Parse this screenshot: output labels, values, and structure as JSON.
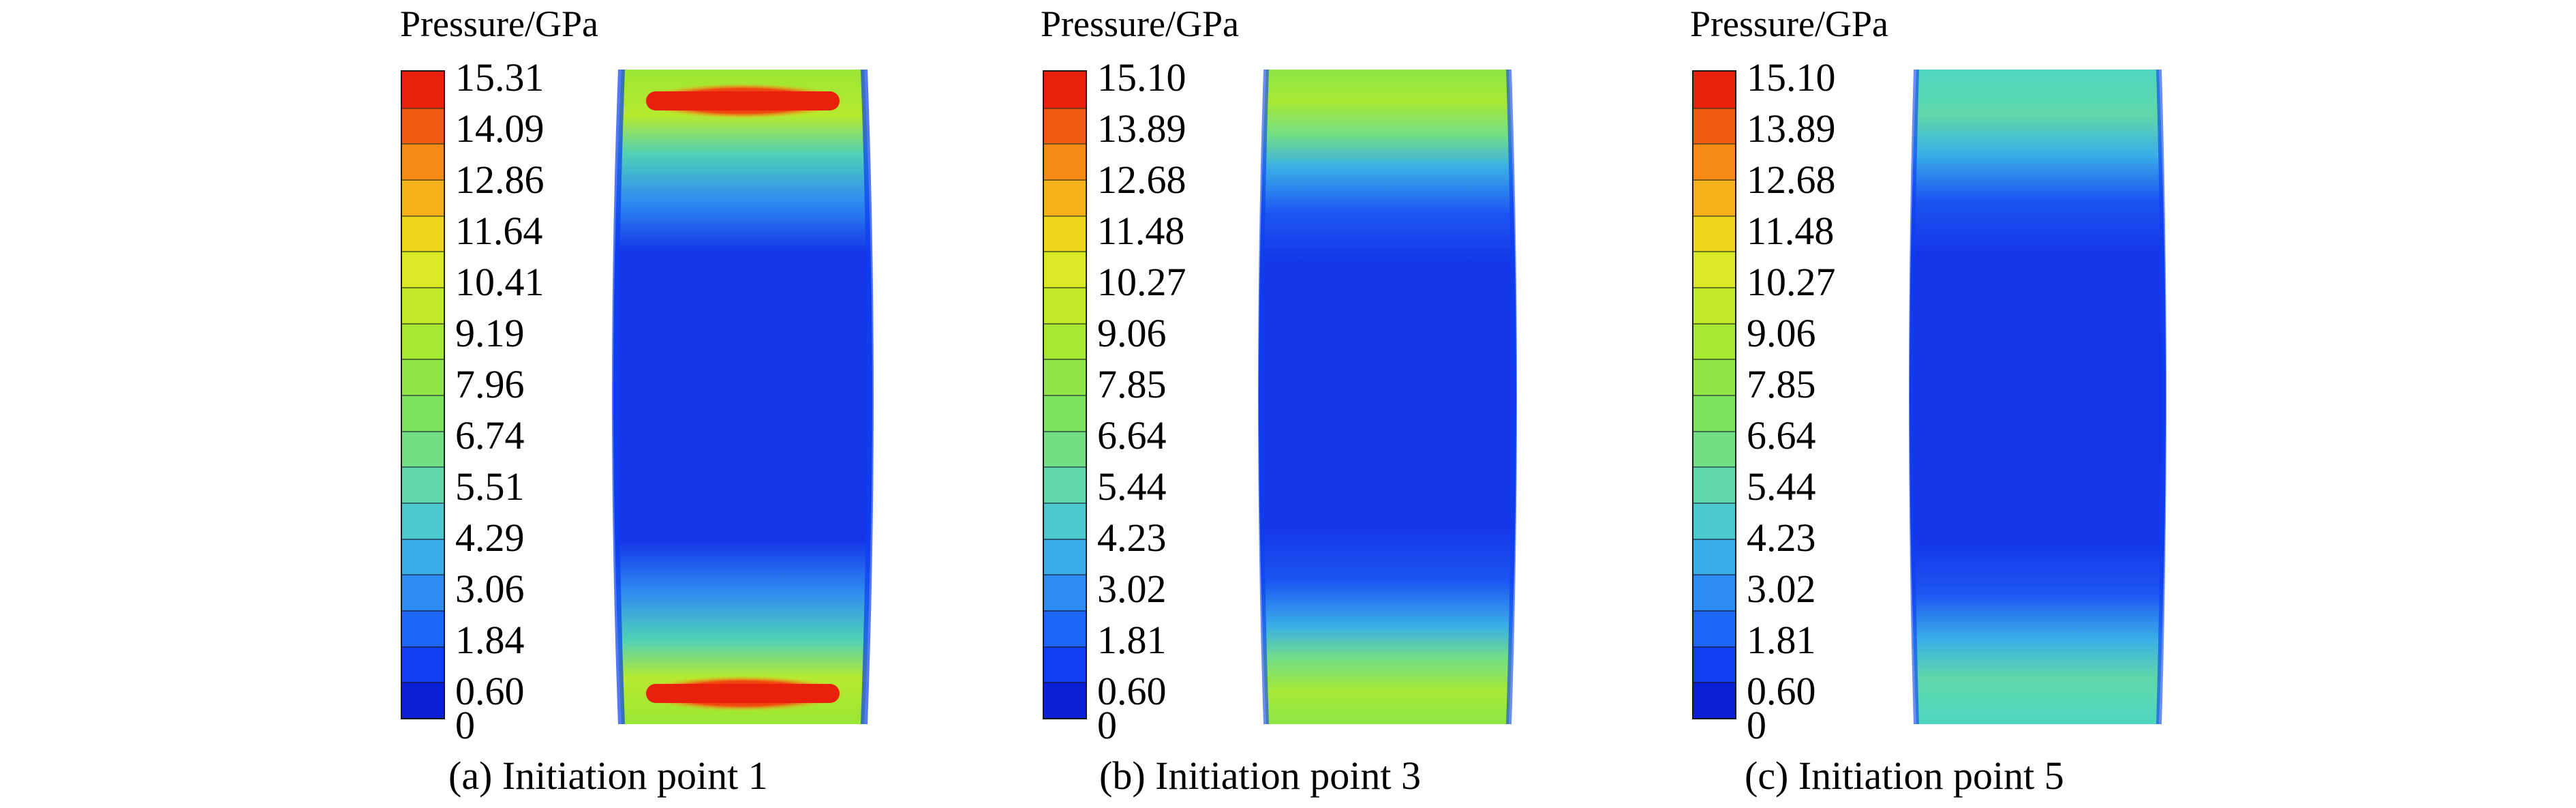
{
  "colors": {
    "scale": [
      "#0a1fd6",
      "#0d3ff0",
      "#1c66f7",
      "#2c8cf2",
      "#3aaee8",
      "#4bc9cf",
      "#5fd8aa",
      "#72df86",
      "#7ee45f",
      "#8fe646",
      "#a7e834",
      "#c1ea2b",
      "#dbe825",
      "#efd61f",
      "#f7b11a",
      "#f58a16",
      "#ef5a12",
      "#e8200c"
    ],
    "specimen_base": "#1436e8"
  },
  "panels": [
    {
      "legend_title": "Pressure/GPa",
      "tick_labels": [
        "15.31",
        "14.09",
        "12.86",
        "11.64",
        "10.41",
        "9.19",
        "7.96",
        "6.74",
        "5.51",
        "4.29",
        "3.06",
        "1.84",
        "0.60",
        "0"
      ],
      "caption": "(a) Initiation point 1",
      "peak_pressure": 15.31,
      "end_zone_level": "high"
    },
    {
      "legend_title": "Pressure/GPa",
      "tick_labels": [
        "15.10",
        "13.89",
        "12.68",
        "11.48",
        "10.27",
        "9.06",
        "7.85",
        "6.64",
        "5.44",
        "4.23",
        "3.02",
        "1.81",
        "0.60",
        "0"
      ],
      "caption": "(b) Initiation point 3",
      "peak_pressure": 15.1,
      "end_zone_level": "medium"
    },
    {
      "legend_title": "Pressure/GPa",
      "tick_labels": [
        "15.10",
        "13.89",
        "12.68",
        "11.48",
        "10.27",
        "9.06",
        "7.85",
        "6.64",
        "5.44",
        "4.23",
        "3.02",
        "1.81",
        "0.60",
        "0"
      ],
      "caption": "(c) Initiation point 5",
      "peak_pressure": 15.1,
      "end_zone_level": "low"
    }
  ]
}
